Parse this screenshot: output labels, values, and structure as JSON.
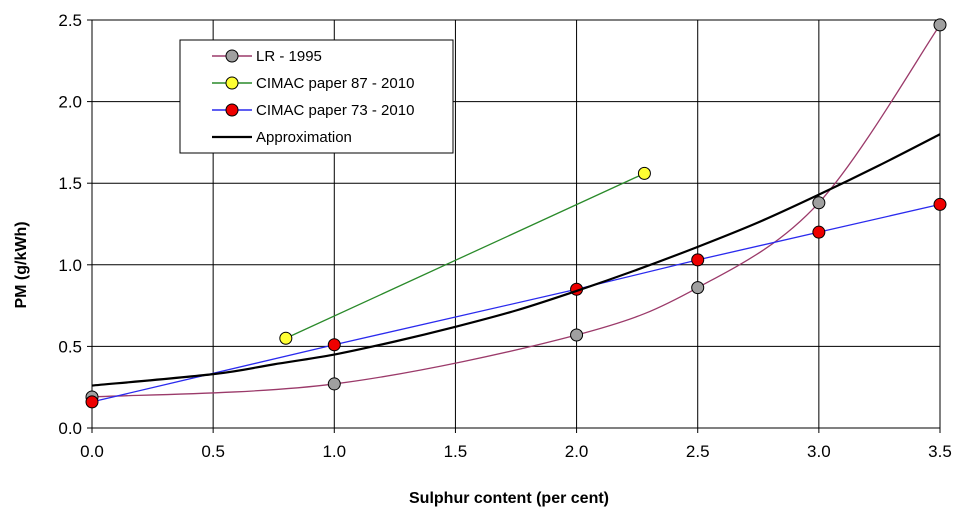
{
  "chart_data": {
    "type": "line",
    "xlabel": "Sulphur content (per cent)",
    "ylabel": "PM (g/kWh)",
    "xlim": [
      0,
      3.5
    ],
    "ylim": [
      0,
      2.5
    ],
    "xticks": [
      "0.0",
      "0.5",
      "1.0",
      "1.5",
      "2.0",
      "2.5",
      "3.0",
      "3.5"
    ],
    "yticks": [
      "0.0",
      "0.5",
      "1.0",
      "1.5",
      "2.0",
      "2.5"
    ],
    "grid": true,
    "legend_position": "top-left",
    "series": [
      {
        "name": "LR - 1995",
        "color": "#9b3a6a",
        "marker_color": "#a0a0a0",
        "style": "smooth",
        "x": [
          0.0,
          1.0,
          2.0,
          2.5,
          3.0,
          3.5
        ],
        "y": [
          0.19,
          0.27,
          0.57,
          0.86,
          1.38,
          2.47
        ]
      },
      {
        "name": "CIMAC paper 87 - 2010",
        "color": "#2a8a2a",
        "marker_color": "#ffff33",
        "style": "straight",
        "x": [
          0.8,
          2.28
        ],
        "y": [
          0.55,
          1.56
        ]
      },
      {
        "name": "CIMAC paper 73 - 2010",
        "color": "#2a2aee",
        "marker_color": "#ee0000",
        "style": "straight",
        "x": [
          0.0,
          1.0,
          2.0,
          2.5,
          3.0,
          3.5
        ],
        "y": [
          0.16,
          0.51,
          0.85,
          1.03,
          1.2,
          1.37
        ]
      },
      {
        "name": "Approximation",
        "color": "#000000",
        "marker_color": "",
        "style": "smooth",
        "x": [
          0.0,
          0.5,
          0.75,
          1.0,
          1.25,
          1.5,
          1.75,
          2.0,
          2.25,
          2.5,
          2.75,
          3.0,
          3.25,
          3.5
        ],
        "y": [
          0.26,
          0.33,
          0.39,
          0.45,
          0.53,
          0.62,
          0.72,
          0.84,
          0.97,
          1.11,
          1.26,
          1.43,
          1.61,
          1.8
        ]
      }
    ]
  }
}
